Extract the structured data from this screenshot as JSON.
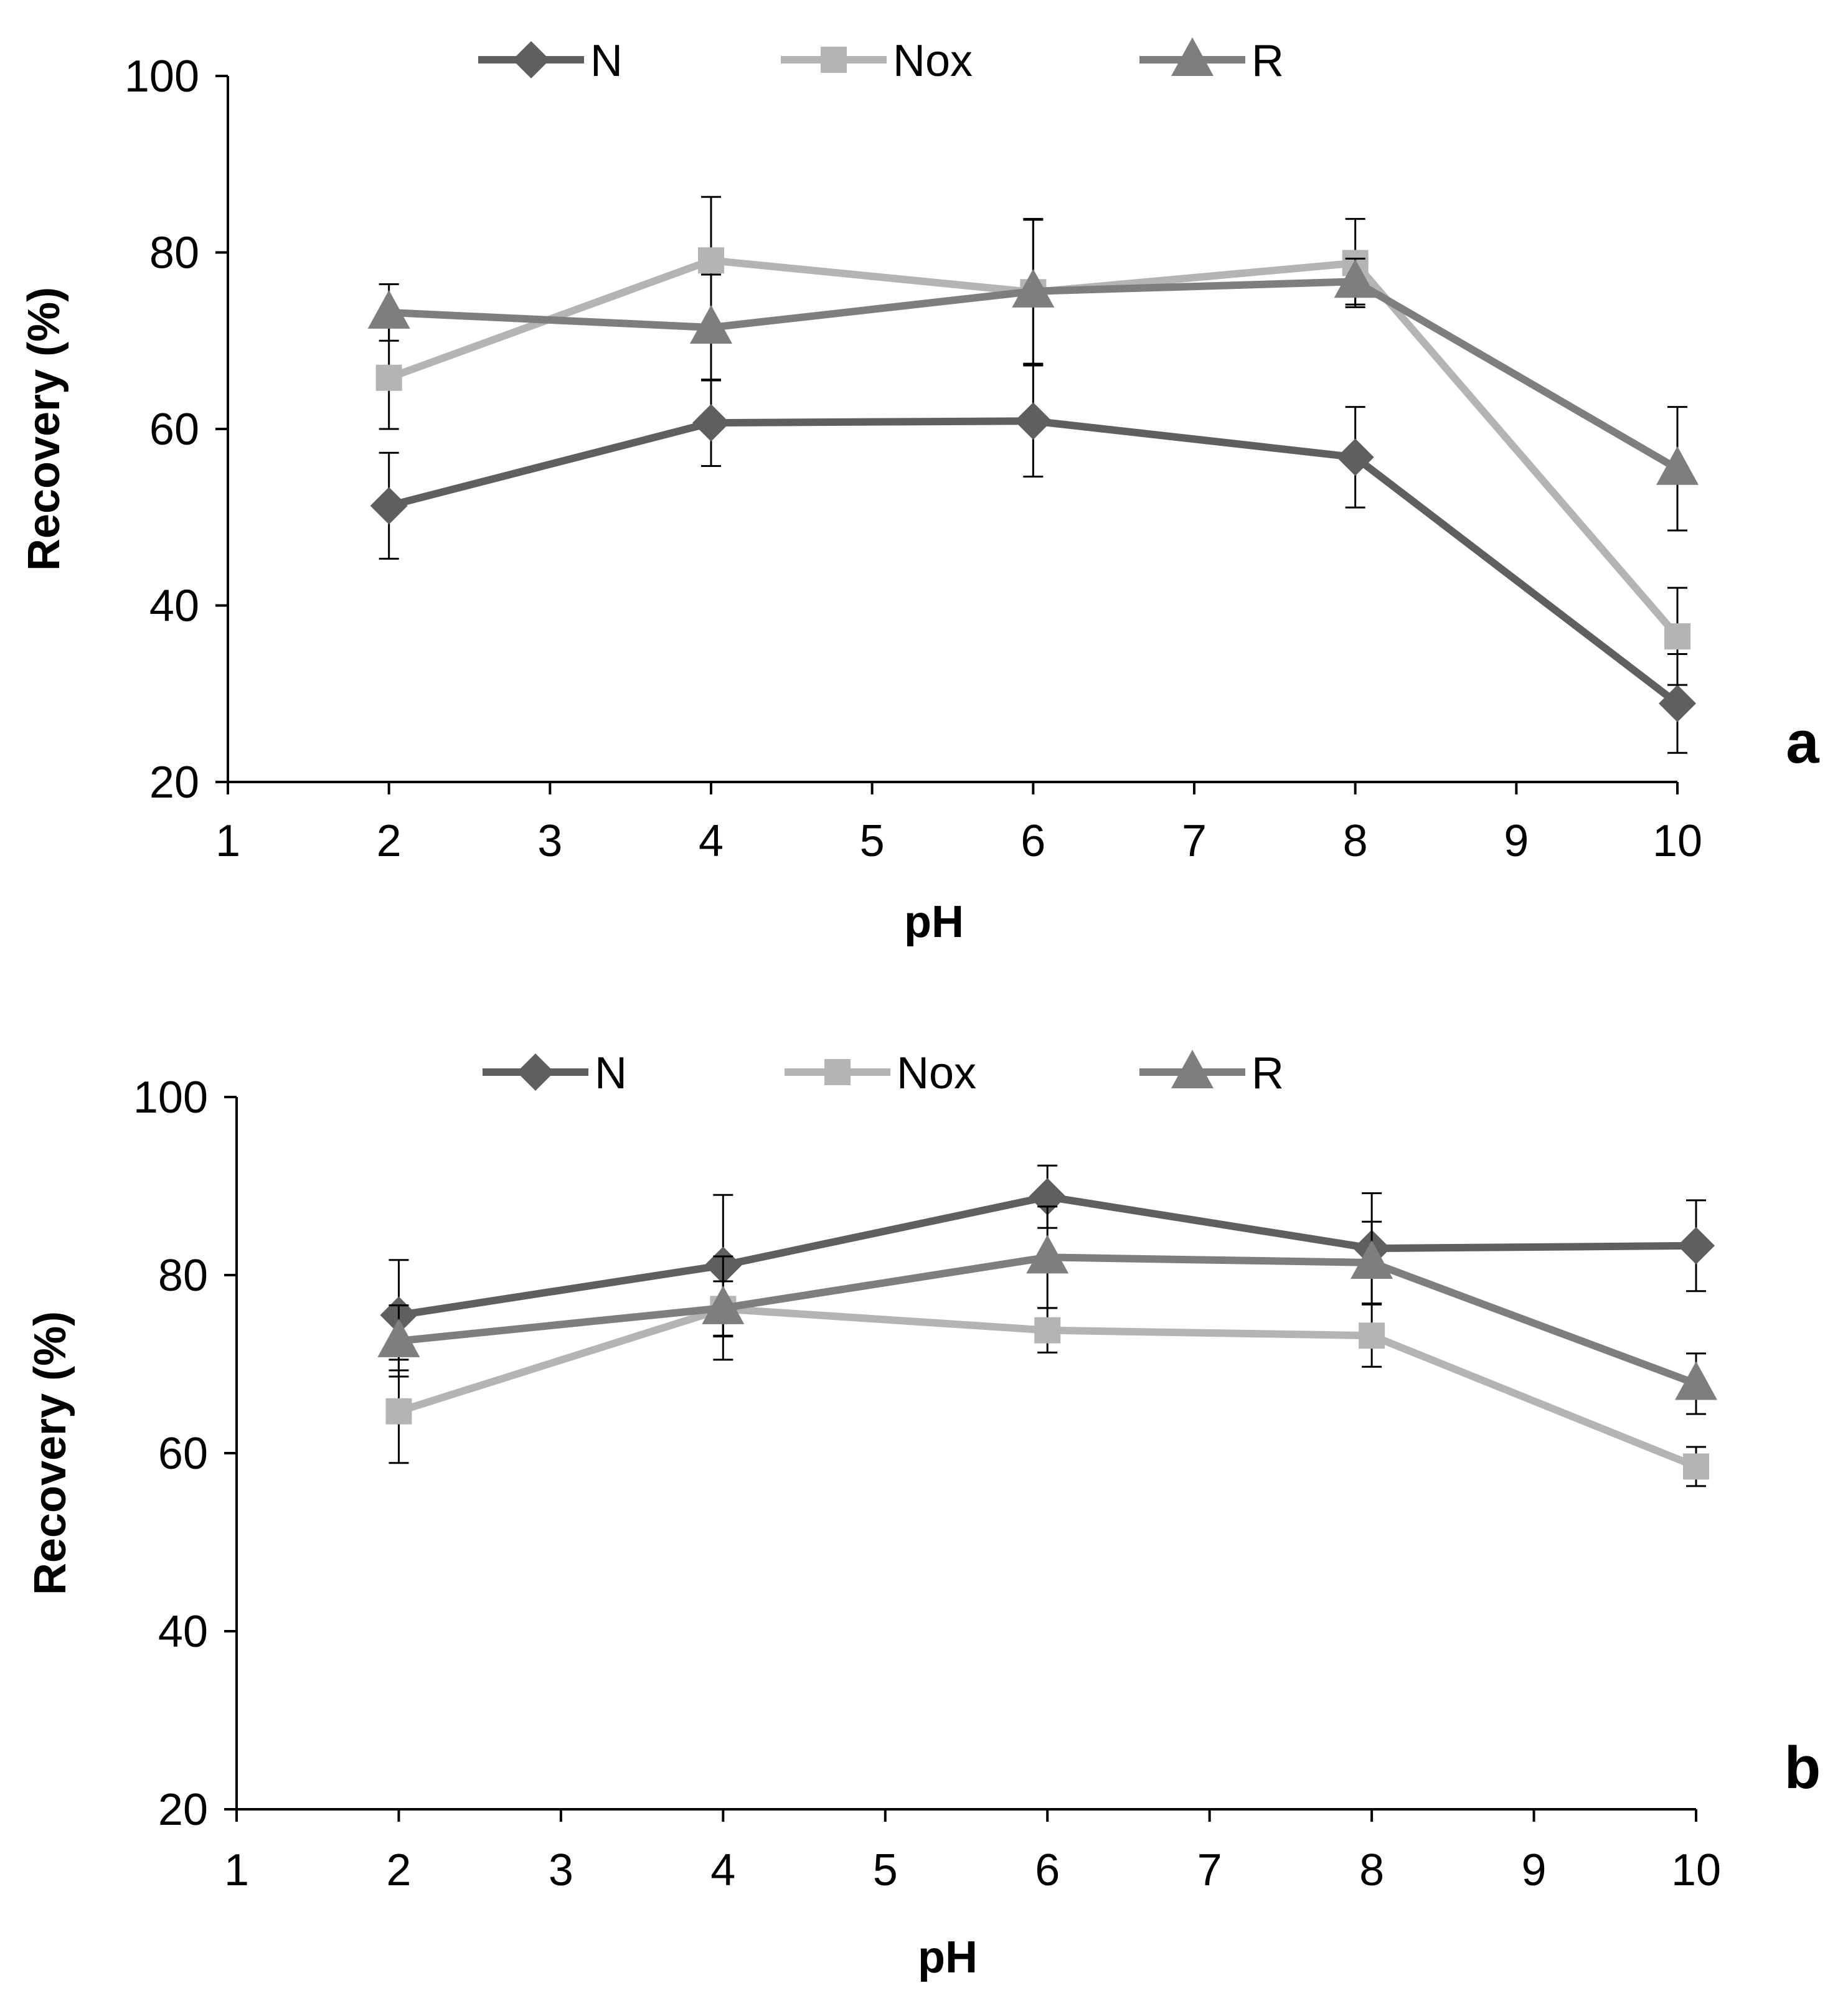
{
  "chart_data": [
    {
      "type": "line",
      "panel_label": "a",
      "xlabel": "pH",
      "ylabel": "Recovery (%)",
      "xlim": [
        1,
        10
      ],
      "ylim": [
        20,
        100
      ],
      "x_ticks": [
        "1",
        "2",
        "3",
        "4",
        "5",
        "6",
        "7",
        "8",
        "9",
        "10"
      ],
      "y_ticks": [
        "20",
        "40",
        "60",
        "80",
        "100"
      ],
      "grid": false,
      "legend": {
        "placement": "top-center"
      },
      "x": [
        2,
        4,
        6,
        8,
        10
      ],
      "series": [
        {
          "name": "N",
          "marker": "diamond",
          "color": "#5f5f5f",
          "values": [
            51.3,
            60.7,
            60.9,
            56.8,
            28.9
          ],
          "error": [
            6.0,
            4.9,
            6.3,
            5.7,
            5.6
          ]
        },
        {
          "name": "Nox",
          "marker": "square",
          "color": "#b4b4b4",
          "values": [
            65.8,
            79.1,
            75.5,
            78.8,
            36.5
          ],
          "error": [
            5.8,
            7.2,
            8.2,
            5.0,
            5.5
          ]
        },
        {
          "name": "R",
          "marker": "triangle",
          "color": "#7e7e7e",
          "values": [
            73.2,
            71.5,
            75.6,
            76.7,
            55.5
          ],
          "error": [
            3.2,
            6.0,
            8.2,
            2.6,
            7.0
          ]
        }
      ]
    },
    {
      "type": "line",
      "panel_label": "b",
      "xlabel": "pH",
      "ylabel": "Recovery (%)",
      "xlim": [
        1,
        10
      ],
      "ylim": [
        20,
        100
      ],
      "x_ticks": [
        "1",
        "2",
        "3",
        "4",
        "5",
        "6",
        "7",
        "8",
        "9",
        "10"
      ],
      "y_ticks": [
        "20",
        "40",
        "60",
        "80",
        "100"
      ],
      "grid": false,
      "legend": {
        "placement": "top-center"
      },
      "x": [
        2,
        4,
        6,
        8,
        10
      ],
      "series": [
        {
          "name": "N",
          "marker": "diamond",
          "color": "#5f5f5f",
          "values": [
            75.5,
            81.1,
            88.8,
            83.0,
            83.3
          ],
          "error": [
            6.2,
            7.9,
            3.5,
            6.2,
            5.1
          ]
        },
        {
          "name": "Nox",
          "marker": "square",
          "color": "#b4b4b4",
          "values": [
            64.7,
            76.2,
            73.8,
            73.2,
            58.5
          ],
          "error": [
            5.8,
            3.1,
            2.5,
            3.5,
            2.2
          ]
        },
        {
          "name": "R",
          "marker": "triangle",
          "color": "#7e7e7e",
          "values": [
            72.6,
            76.3,
            82.0,
            81.4,
            67.8
          ],
          "error": [
            4.0,
            5.8,
            5.7,
            4.6,
            3.4
          ]
        }
      ]
    }
  ]
}
